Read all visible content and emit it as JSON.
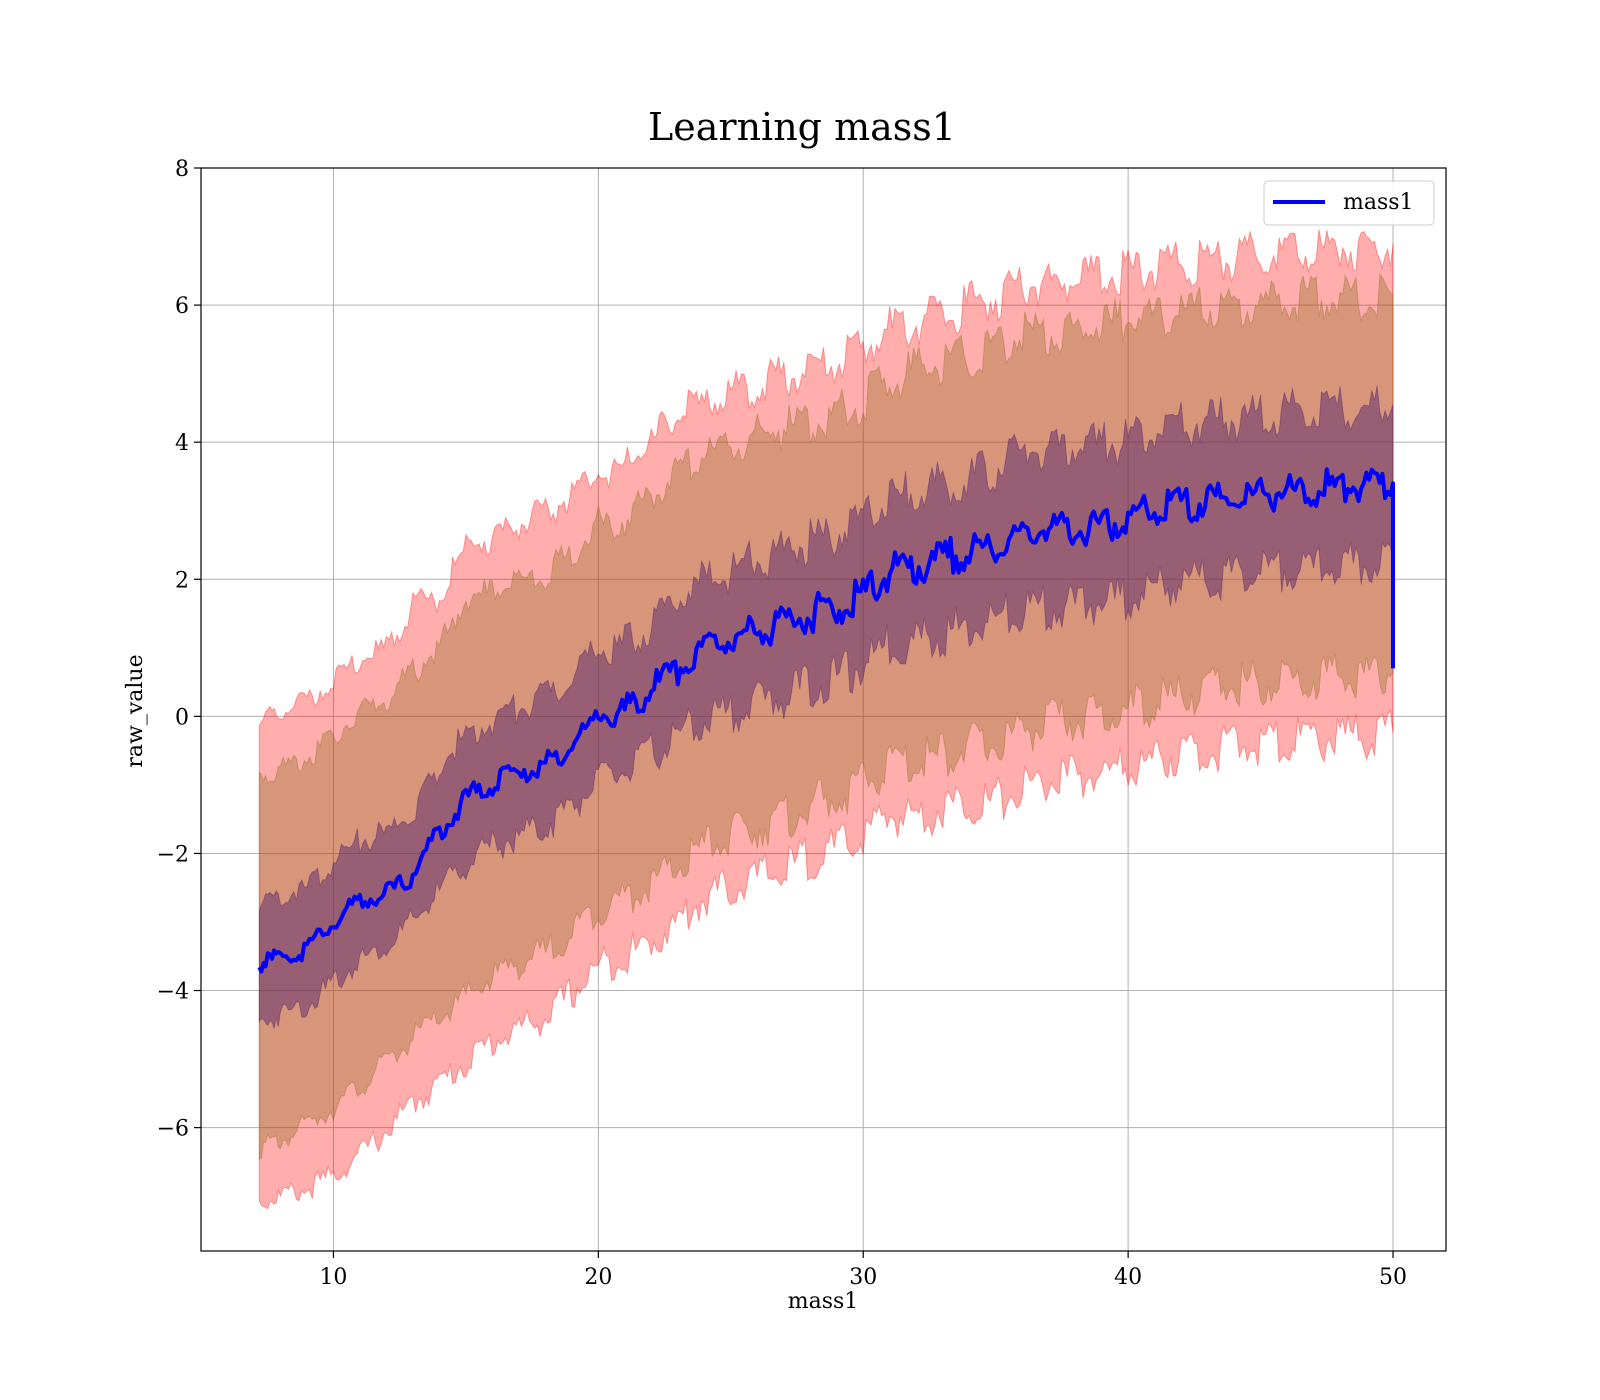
{
  "chart_data": {
    "type": "line",
    "title": "Learning mass1",
    "xlabel": "mass1",
    "ylabel": "raw_value",
    "xlim": [
      5,
      52
    ],
    "ylim": [
      -7.8,
      8
    ],
    "xticks": [
      10,
      20,
      30,
      40,
      50
    ],
    "xtick_labels": [
      "10",
      "20",
      "30",
      "40",
      "50"
    ],
    "yticks": [
      -6,
      -4,
      -2,
      0,
      2,
      4,
      6,
      8
    ],
    "ytick_labels": [
      "−6",
      "−4",
      "−2",
      "0",
      "2",
      "4",
      "6",
      "8"
    ],
    "grid": true,
    "legend": {
      "position": "top-right",
      "entries": [
        "mass1"
      ]
    },
    "colors": {
      "line": "#0000ff",
      "band_outer": "#ff0000",
      "band_middle": "#8b6d1e",
      "band_inner": "#4b1a6b"
    },
    "x": [
      7.2,
      8,
      9,
      10,
      11,
      12,
      13,
      14,
      15,
      16,
      17,
      18,
      19,
      20,
      21,
      22,
      23,
      24,
      25,
      26,
      27,
      28,
      29,
      30,
      31,
      32,
      33,
      34,
      35,
      36,
      37,
      38,
      39,
      40,
      41,
      42,
      43,
      44,
      45,
      46,
      47,
      48,
      49,
      50
    ],
    "series": [
      {
        "name": "mass1",
        "values": [
          -3.6,
          -3.5,
          -3.4,
          -3.0,
          -2.7,
          -2.6,
          -2.3,
          -1.7,
          -1.2,
          -1.0,
          -0.8,
          -0.7,
          -0.4,
          0.0,
          0.1,
          0.4,
          0.7,
          1.0,
          1.1,
          1.25,
          1.35,
          1.5,
          1.6,
          1.8,
          2.1,
          2.2,
          2.3,
          2.4,
          2.5,
          2.7,
          2.75,
          2.75,
          2.8,
          2.9,
          3.0,
          3.1,
          3.15,
          3.2,
          3.25,
          3.3,
          3.3,
          3.35,
          3.35,
          3.4
        ]
      }
    ],
    "bands": [
      {
        "level": "outer",
        "lower": [
          -7.1,
          -7.0,
          -6.9,
          -6.7,
          -6.4,
          -6.05,
          -5.65,
          -5.35,
          -5.05,
          -4.75,
          -4.55,
          -4.4,
          -4.05,
          -3.65,
          -3.5,
          -3.3,
          -3.0,
          -2.65,
          -2.5,
          -2.35,
          -2.25,
          -2.05,
          -1.95,
          -1.75,
          -1.45,
          -1.45,
          -1.35,
          -1.25,
          -1.25,
          -1.05,
          -0.95,
          -0.9,
          -0.85,
          -0.75,
          -0.65,
          -0.55,
          -0.5,
          -0.45,
          -0.4,
          -0.35,
          -0.35,
          -0.3,
          -0.3,
          -0.25
        ]
      },
      {
        "level": "middle",
        "lower": [
          -6.3,
          -6.2,
          -5.95,
          -5.7,
          -5.4,
          -5.05,
          -4.7,
          -4.4,
          -4.1,
          -3.8,
          -3.6,
          -3.45,
          -3.15,
          -2.8,
          -2.65,
          -2.45,
          -2.2,
          -1.9,
          -1.75,
          -1.6,
          -1.5,
          -1.3,
          -1.2,
          -1.0,
          -0.7,
          -0.65,
          -0.55,
          -0.45,
          -0.4,
          -0.2,
          -0.1,
          -0.05,
          0.0,
          0.1,
          0.2,
          0.3,
          0.4,
          0.45,
          0.5,
          0.55,
          0.55,
          0.6,
          0.6,
          0.65
        ]
      },
      {
        "level": "inner",
        "lower": [
          -4.5,
          -4.35,
          -4.2,
          -3.9,
          -3.55,
          -3.35,
          -3.0,
          -2.55,
          -2.15,
          -1.9,
          -1.75,
          -1.6,
          -1.3,
          -0.95,
          -0.8,
          -0.55,
          -0.3,
          -0.05,
          0.05,
          0.2,
          0.3,
          0.45,
          0.55,
          0.75,
          1.05,
          1.1,
          1.2,
          1.3,
          1.4,
          1.55,
          1.6,
          1.6,
          1.65,
          1.75,
          1.85,
          1.95,
          2.0,
          2.05,
          2.1,
          2.15,
          2.15,
          2.2,
          2.2,
          2.25
        ]
      },
      {
        "level": "inner",
        "upper": [
          -2.7,
          -2.6,
          -2.5,
          -2.1,
          -1.8,
          -1.7,
          -1.4,
          -0.75,
          -0.25,
          -0.05,
          0.15,
          0.25,
          0.55,
          0.95,
          1.05,
          1.35,
          1.7,
          2.0,
          2.1,
          2.3,
          2.4,
          2.55,
          2.65,
          2.85,
          3.15,
          3.3,
          3.4,
          3.5,
          3.6,
          3.85,
          3.9,
          3.9,
          3.95,
          4.05,
          4.15,
          4.25,
          4.3,
          4.35,
          4.4,
          4.45,
          4.45,
          4.5,
          4.5,
          4.55
        ]
      },
      {
        "level": "middle",
        "upper": [
          -0.9,
          -0.75,
          -0.6,
          -0.3,
          0.05,
          0.25,
          0.65,
          1.0,
          1.7,
          1.8,
          2.0,
          2.05,
          2.35,
          2.8,
          2.85,
          3.25,
          3.6,
          3.85,
          3.95,
          4.1,
          4.2,
          4.3,
          4.4,
          4.6,
          4.9,
          5.05,
          5.15,
          5.25,
          5.4,
          5.6,
          5.6,
          5.65,
          5.7,
          5.8,
          5.85,
          5.9,
          5.95,
          6.0,
          6.0,
          6.05,
          6.1,
          6.1,
          6.1,
          6.15
        ]
      },
      {
        "level": "outer",
        "upper": [
          -0.1,
          0.05,
          0.25,
          0.5,
          0.8,
          1.0,
          1.6,
          1.75,
          2.45,
          2.6,
          2.8,
          2.95,
          3.25,
          3.55,
          3.65,
          4.0,
          4.4,
          4.55,
          4.7,
          4.85,
          4.95,
          5.05,
          5.15,
          5.35,
          5.65,
          5.75,
          5.85,
          6.0,
          6.1,
          6.25,
          6.3,
          6.35,
          6.4,
          6.5,
          6.55,
          6.6,
          6.65,
          6.7,
          6.75,
          6.8,
          6.8,
          6.85,
          6.85,
          6.9
        ]
      }
    ]
  }
}
